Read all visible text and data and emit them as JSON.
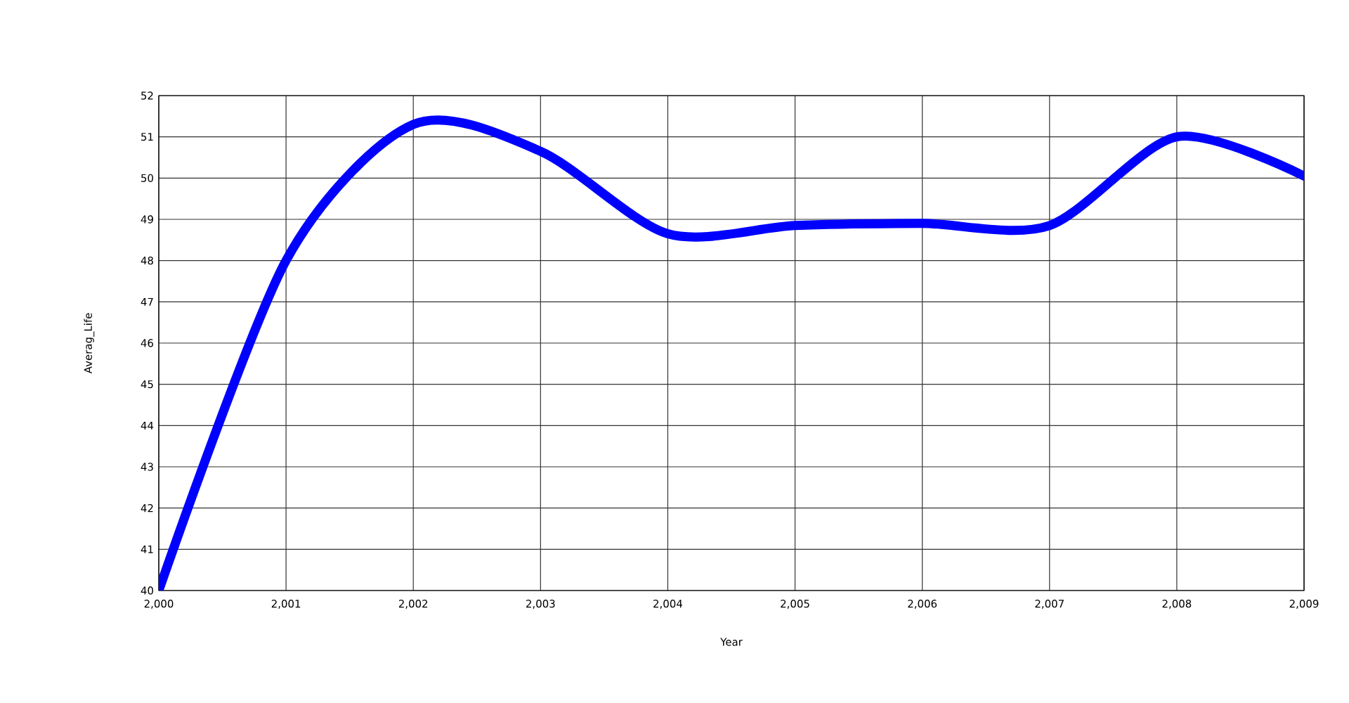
{
  "chart_data": {
    "type": "line",
    "xlabel": "Year",
    "ylabel": "Averag_Life",
    "x": [
      2000,
      2001,
      2002,
      2003,
      2004,
      2005,
      2006,
      2007,
      2008,
      2009
    ],
    "series": [
      {
        "color": "#0000ff",
        "values": [
          40,
          48,
          51.3,
          50.65,
          48.65,
          48.85,
          48.9,
          48.85,
          51.0,
          50.05
        ]
      }
    ],
    "xlim": [
      2000,
      2009
    ],
    "xticks": [
      {
        "value": 2000,
        "label": "2,000"
      },
      {
        "value": 2001,
        "label": "2,001"
      },
      {
        "value": 2002,
        "label": "2,002"
      },
      {
        "value": 2003,
        "label": "2,003"
      },
      {
        "value": 2004,
        "label": "2,004"
      },
      {
        "value": 2005,
        "label": "2,005"
      },
      {
        "value": 2006,
        "label": "2,006"
      },
      {
        "value": 2007,
        "label": "2,007"
      },
      {
        "value": 2008,
        "label": "2,008"
      },
      {
        "value": 2009,
        "label": "2,009"
      }
    ],
    "ylim": [
      40,
      52
    ],
    "yticks": [
      40,
      41,
      42,
      43,
      44,
      45,
      46,
      47,
      48,
      49,
      50,
      51,
      52
    ],
    "grid": true,
    "marker": "none",
    "line_style": "solid"
  }
}
